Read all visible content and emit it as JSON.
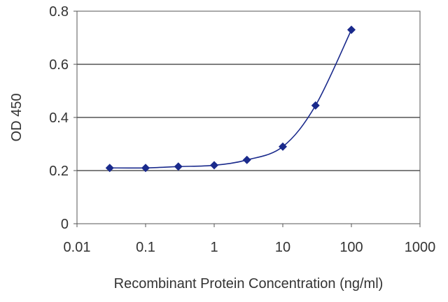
{
  "chart_data": {
    "type": "line",
    "title": "",
    "xlabel": "Recombinant Protein Concentration (ng/ml)",
    "ylabel": "OD 450",
    "x_scale": "log",
    "xlim": [
      0.01,
      1000
    ],
    "ylim": [
      0,
      0.8
    ],
    "x_ticks": [
      "0.01",
      "0.1",
      "1",
      "10",
      "100",
      "1000"
    ],
    "y_ticks": [
      "0",
      "0.2",
      "0.4",
      "0.6",
      "0.8"
    ],
    "grid": "horizontal",
    "series": [
      {
        "x": [
          0.03,
          0.1,
          0.3,
          1,
          3,
          10,
          30,
          100
        ],
        "y": [
          0.21,
          0.21,
          0.215,
          0.22,
          0.24,
          0.29,
          0.445,
          0.73
        ]
      }
    ],
    "colors": {
      "series": "#1a2a8c",
      "grid": "#555555",
      "frame": "#555555"
    }
  }
}
